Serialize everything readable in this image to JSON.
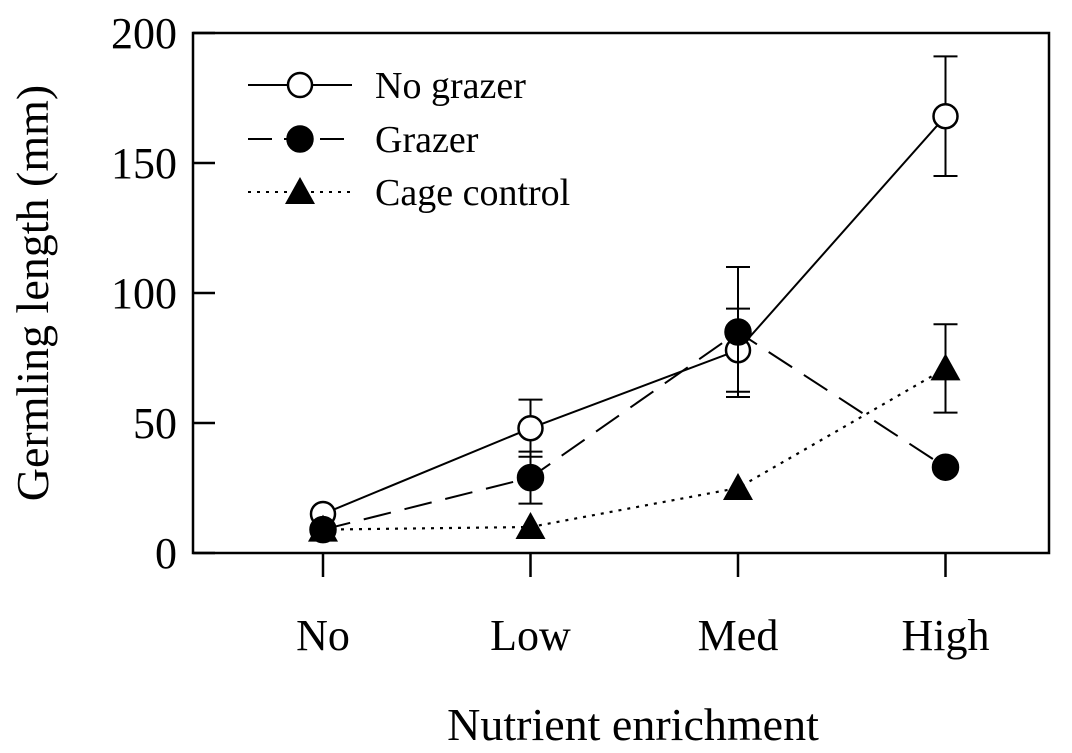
{
  "chart_data": {
    "type": "line",
    "title": "",
    "xlabel": "Nutrient enrichment",
    "ylabel": "Germling length (mm)",
    "categories": [
      "No",
      "Low",
      "Med",
      "High"
    ],
    "ylim": [
      0,
      200
    ],
    "yticks": [
      0,
      50,
      100,
      150,
      200
    ],
    "grid": false,
    "legend_position": "top-left",
    "series": [
      {
        "name": "No grazer",
        "marker": "open-circle",
        "line_style": "solid",
        "values": [
          15,
          48,
          78,
          168
        ],
        "errors": [
          null,
          11,
          16,
          23
        ]
      },
      {
        "name": "Grazer",
        "marker": "filled-circle",
        "line_style": "dashed",
        "values": [
          9,
          29,
          85,
          33
        ],
        "errors": [
          null,
          10,
          25,
          null
        ]
      },
      {
        "name": "Cage control",
        "marker": "filled-triangle",
        "line_style": "dotted",
        "values": [
          9,
          10,
          25,
          71
        ],
        "errors": [
          null,
          null,
          null,
          17
        ]
      }
    ],
    "colors": {
      "ink": "#000000",
      "background": "#ffffff"
    }
  }
}
